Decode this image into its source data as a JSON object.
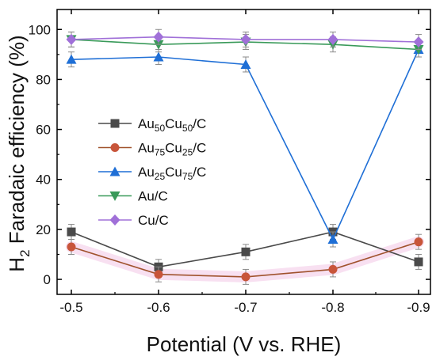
{
  "chart_data": {
    "type": "line",
    "xlabel": "Potential (V vs. RHE)",
    "ylabel": "H2 Faradaic efficiency (%)",
    "ylabel_parts": {
      "pre": "H",
      "sub": "2",
      "post": " Faradaic efficiency (%)"
    },
    "x": [
      -0.5,
      -0.6,
      -0.7,
      -0.8,
      -0.9
    ],
    "x_tick_labels": [
      "-0.5",
      "-0.6",
      "-0.7",
      "-0.8",
      "-0.9"
    ],
    "y_ticks": [
      0,
      20,
      40,
      60,
      80,
      100
    ],
    "y_tick_labels": [
      "0",
      "20",
      "40",
      "60",
      "80",
      "100"
    ],
    "ylim": [
      -6,
      108
    ],
    "xlim_reversed": true,
    "grid": false,
    "legend_position": "left-center",
    "series": [
      {
        "name": "Au50Cu50/C",
        "name_parts": [
          {
            "t": "Au"
          },
          {
            "t": "50",
            "sub": true
          },
          {
            "t": "Cu"
          },
          {
            "t": "50",
            "sub": true
          },
          {
            "t": "/C"
          }
        ],
        "marker": "square",
        "color": "#4a4a4a",
        "values": [
          19,
          5,
          11,
          19,
          7
        ],
        "errors": [
          3,
          3,
          3,
          3,
          3
        ]
      },
      {
        "name": "Au75Cu25/C",
        "name_parts": [
          {
            "t": "Au"
          },
          {
            "t": "75",
            "sub": true
          },
          {
            "t": "Cu"
          },
          {
            "t": "25",
            "sub": true
          },
          {
            "t": "/C"
          }
        ],
        "marker": "circle",
        "color": "#a0522d",
        "marker_color": "#c8553a",
        "values": [
          13,
          2,
          1,
          4,
          15
        ],
        "errors": [
          3,
          3,
          3,
          3,
          3
        ]
      },
      {
        "name": "Au25Cu75/C",
        "name_parts": [
          {
            "t": "Au"
          },
          {
            "t": "25",
            "sub": true
          },
          {
            "t": "Cu"
          },
          {
            "t": "75",
            "sub": true
          },
          {
            "t": "/C"
          }
        ],
        "marker": "triangle-up",
        "color": "#1f6fd6",
        "values": [
          88,
          89,
          86,
          16,
          92
        ],
        "errors": [
          3,
          3,
          3,
          3,
          3
        ]
      },
      {
        "name": "Au/C",
        "name_parts": [
          {
            "t": "Au/C"
          }
        ],
        "marker": "triangle-down",
        "color": "#3a9a5a",
        "values": [
          96,
          94,
          95,
          94,
          92
        ],
        "errors": [
          3,
          3,
          3,
          3,
          3
        ]
      },
      {
        "name": "Cu/C",
        "name_parts": [
          {
            "t": "Cu/C"
          }
        ],
        "marker": "diamond",
        "color": "#a070d8",
        "values": [
          96,
          97,
          96,
          96,
          95
        ],
        "errors": [
          3,
          3,
          3,
          3,
          3
        ]
      }
    ],
    "highlight_band_color": "#f2c6e6"
  }
}
